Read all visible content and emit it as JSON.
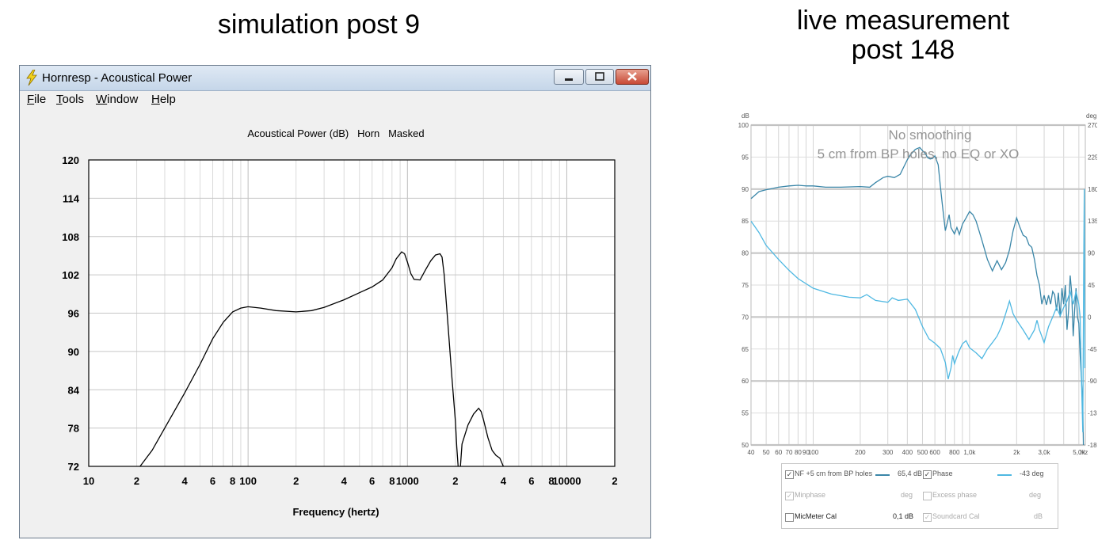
{
  "captions": {
    "left": "simulation post 9",
    "right_line1": "live measurement",
    "right_line2": "post 148"
  },
  "window": {
    "title": "Hornresp - Acoustical Power",
    "menu": [
      {
        "u": "F",
        "rest": "ile"
      },
      {
        "u": "T",
        "rest": "ools"
      },
      {
        "u": "W",
        "rest": "indow"
      },
      {
        "u": "H",
        "rest": "elp"
      }
    ]
  },
  "colors": {
    "phase": "#4fb8e2",
    "magnitude": "#3a86a8",
    "grid": "#c8c8c8",
    "close_button": "#c74a36"
  },
  "chart_data": [
    {
      "type": "line",
      "title": "Acoustical Power (dB)   Horn   Masked",
      "xlabel": "Frequency (hertz)",
      "ylabel": "",
      "xscale": "log",
      "xlim": [
        10,
        20000
      ],
      "ylim": [
        72,
        120
      ],
      "yticks": [
        72,
        78,
        84,
        90,
        96,
        102,
        108,
        114,
        120
      ],
      "xticklabels": [
        {
          "f": 10,
          "t": "10"
        },
        {
          "f": 20,
          "t": "2"
        },
        {
          "f": 40,
          "t": "4"
        },
        {
          "f": 60,
          "t": "6"
        },
        {
          "f": 80,
          "t": "8"
        },
        {
          "f": 100,
          "t": "100"
        },
        {
          "f": 200,
          "t": "2"
        },
        {
          "f": 400,
          "t": "4"
        },
        {
          "f": 600,
          "t": "6"
        },
        {
          "f": 800,
          "t": "8"
        },
        {
          "f": 1000,
          "t": "1000"
        },
        {
          "f": 2000,
          "t": "2"
        },
        {
          "f": 4000,
          "t": "4"
        },
        {
          "f": 6000,
          "t": "6"
        },
        {
          "f": 8000,
          "t": "8"
        },
        {
          "f": 10000,
          "t": "10000"
        },
        {
          "f": 20000,
          "t": "2"
        }
      ],
      "grid": true,
      "series": [
        {
          "segments": [
            [
              [
                21,
                72
              ],
              [
                25,
                74.5
              ],
              [
                30,
                78
              ],
              [
                40,
                83.5
              ],
              [
                50,
                88
              ],
              [
                60,
                92
              ],
              [
                70,
                94.6
              ],
              [
                80,
                96.2
              ],
              [
                90,
                96.8
              ],
              [
                100,
                97
              ],
              [
                120,
                96.8
              ],
              [
                150,
                96.4
              ],
              [
                200,
                96.2
              ],
              [
                250,
                96.4
              ],
              [
                300,
                96.9
              ],
              [
                400,
                98.1
              ],
              [
                500,
                99.2
              ],
              [
                600,
                100.1
              ],
              [
                700,
                101.2
              ],
              [
                800,
                103.1
              ],
              [
                850,
                104.5
              ],
              [
                920,
                105.6
              ],
              [
                960,
                105.3
              ],
              [
                1000,
                104
              ],
              [
                1050,
                102.2
              ],
              [
                1100,
                101.3
              ],
              [
                1200,
                101.2
              ],
              [
                1300,
                102.8
              ],
              [
                1400,
                104.2
              ],
              [
                1500,
                105.1
              ],
              [
                1600,
                105.3
              ],
              [
                1650,
                104.8
              ],
              [
                1700,
                102
              ],
              [
                1800,
                94
              ],
              [
                1900,
                86
              ],
              [
                2000,
                79
              ],
              [
                2040,
                75
              ],
              [
                2080,
                72
              ]
            ],
            [
              [
                2150,
                72
              ],
              [
                2200,
                75.5
              ],
              [
                2400,
                78.5
              ],
              [
                2600,
                80.2
              ],
              [
                2800,
                81.1
              ],
              [
                2900,
                80.6
              ],
              [
                3000,
                79.3
              ],
              [
                3200,
                76.5
              ],
              [
                3400,
                74.5
              ],
              [
                3600,
                73.7
              ],
              [
                3800,
                73.3
              ],
              [
                4000,
                72
              ]
            ]
          ]
        }
      ]
    },
    {
      "type": "line",
      "title": "",
      "annotations": [
        "No smoothing",
        "5 cm from BP holes, no EQ or XO"
      ],
      "xscale": "log",
      "xlim": [
        40,
        5500
      ],
      "ylim": [
        50,
        100
      ],
      "y_left_label": "dB",
      "y_right_label": "deg",
      "y_right_lim": [
        -180,
        270
      ],
      "yticks": [
        50,
        55,
        60,
        65,
        70,
        75,
        80,
        85,
        90,
        95,
        100
      ],
      "y_right_ticks": [
        -180,
        -135,
        -90,
        -45,
        0,
        45,
        90,
        135,
        180,
        225,
        270
      ],
      "xticklabels": [
        {
          "f": 40,
          "t": "40"
        },
        {
          "f": 50,
          "t": "50"
        },
        {
          "f": 60,
          "t": "60"
        },
        {
          "f": 70,
          "t": "70"
        },
        {
          "f": 80,
          "t": "80"
        },
        {
          "f": 90,
          "t": "90"
        },
        {
          "f": 100,
          "t": "100"
        },
        {
          "f": 200,
          "t": "200"
        },
        {
          "f": 300,
          "t": "300"
        },
        {
          "f": 400,
          "t": "400"
        },
        {
          "f": 500,
          "t": "500"
        },
        {
          "f": 600,
          "t": "600"
        },
        {
          "f": 800,
          "t": "800"
        },
        {
          "f": 1000,
          "t": "1,0k"
        },
        {
          "f": 2000,
          "t": "2k"
        },
        {
          "f": 3000,
          "t": "3,0k"
        },
        {
          "f": 5000,
          "t": "5,0k"
        },
        {
          "f": 5400,
          "t": "Hz"
        }
      ],
      "grid": true,
      "series": [
        {
          "name": "NF +5 cm from BP holes",
          "points": [
            [
              40,
              88.5
            ],
            [
              45,
              89.6
            ],
            [
              50,
              89.9
            ],
            [
              55,
              90.1
            ],
            [
              60,
              90.3
            ],
            [
              70,
              90.5
            ],
            [
              80,
              90.6
            ],
            [
              90,
              90.5
            ],
            [
              100,
              90.5
            ],
            [
              120,
              90.3
            ],
            [
              150,
              90.3
            ],
            [
              200,
              90.4
            ],
            [
              230,
              90.3
            ],
            [
              250,
              91
            ],
            [
              280,
              91.8
            ],
            [
              300,
              92
            ],
            [
              330,
              91.8
            ],
            [
              360,
              92.3
            ],
            [
              380,
              93.5
            ],
            [
              400,
              94.6
            ],
            [
              420,
              95.4
            ],
            [
              450,
              96.2
            ],
            [
              480,
              96.5
            ],
            [
              500,
              96
            ],
            [
              520,
              95.6
            ],
            [
              540,
              94.9
            ],
            [
              560,
              94.7
            ],
            [
              580,
              94.8
            ],
            [
              600,
              95.2
            ],
            [
              630,
              93.8
            ],
            [
              650,
              90.5
            ],
            [
              670,
              87.5
            ],
            [
              700,
              83.5
            ],
            [
              720,
              84.7
            ],
            [
              740,
              86
            ],
            [
              760,
              84
            ],
            [
              800,
              83
            ],
            [
              830,
              84
            ],
            [
              860,
              82.9
            ],
            [
              900,
              84.5
            ],
            [
              950,
              85.5
            ],
            [
              1000,
              86.5
            ],
            [
              1050,
              86
            ],
            [
              1100,
              85
            ],
            [
              1200,
              82
            ],
            [
              1300,
              79
            ],
            [
              1400,
              77.2
            ],
            [
              1500,
              78.8
            ],
            [
              1600,
              77.4
            ],
            [
              1700,
              78.5
            ],
            [
              1800,
              80.5
            ],
            [
              1900,
              83.5
            ],
            [
              2000,
              85.5
            ],
            [
              2100,
              84
            ],
            [
              2200,
              82.8
            ],
            [
              2300,
              82.5
            ],
            [
              2400,
              81.3
            ],
            [
              2500,
              80.9
            ],
            [
              2600,
              79
            ],
            [
              2700,
              76.5
            ],
            [
              2800,
              75
            ],
            [
              2900,
              72
            ],
            [
              3000,
              73.4
            ],
            [
              3100,
              71.9
            ],
            [
              3200,
              73.4
            ],
            [
              3300,
              72
            ],
            [
              3400,
              74
            ],
            [
              3500,
              73.5
            ],
            [
              3600,
              71
            ],
            [
              3700,
              73.8
            ],
            [
              3800,
              70
            ],
            [
              3900,
              74.5
            ],
            [
              4000,
              72
            ],
            [
              4100,
              75
            ],
            [
              4200,
              68
            ],
            [
              4300,
              71
            ],
            [
              4400,
              76.5
            ],
            [
              4500,
              73.8
            ],
            [
              4600,
              67
            ],
            [
              4700,
              71
            ],
            [
              4800,
              74.5
            ],
            [
              4900,
              70
            ],
            [
              5000,
              69
            ],
            [
              5100,
              64
            ],
            [
              5200,
              60
            ],
            [
              5300,
              56
            ],
            [
              5350,
              50
            ]
          ],
          "legend_value": "65,4 dB",
          "checked": true
        },
        {
          "name": "Phase",
          "points": [
            [
              40,
              85
            ],
            [
              45,
              83.2
            ],
            [
              50,
              81.2
            ],
            [
              60,
              79
            ],
            [
              70,
              77.3
            ],
            [
              80,
              76
            ],
            [
              100,
              74.5
            ],
            [
              130,
              73.6
            ],
            [
              170,
              73.1
            ],
            [
              200,
              73
            ],
            [
              220,
              73.5
            ],
            [
              250,
              72.6
            ],
            [
              300,
              72.3
            ],
            [
              320,
              73
            ],
            [
              350,
              72.6
            ],
            [
              400,
              72.8
            ],
            [
              450,
              71.2
            ],
            [
              500,
              68.5
            ],
            [
              550,
              66.6
            ],
            [
              600,
              65.9
            ],
            [
              650,
              65.1
            ],
            [
              700,
              62.9
            ],
            [
              730,
              60.3
            ],
            [
              760,
              62
            ],
            [
              780,
              64
            ],
            [
              800,
              62.7
            ],
            [
              850,
              64.5
            ],
            [
              900,
              65.8
            ],
            [
              950,
              66.3
            ],
            [
              1000,
              65.2
            ],
            [
              1100,
              64.4
            ],
            [
              1200,
              63.5
            ],
            [
              1300,
              65
            ],
            [
              1400,
              66
            ],
            [
              1500,
              67
            ],
            [
              1600,
              68.5
            ],
            [
              1700,
              70.5
            ],
            [
              1800,
              72.5
            ],
            [
              1900,
              70.5
            ],
            [
              2000,
              69.5
            ],
            [
              2200,
              68
            ],
            [
              2400,
              66.5
            ],
            [
              2600,
              68
            ],
            [
              2700,
              69.5
            ],
            [
              2800,
              68
            ],
            [
              3000,
              66
            ],
            [
              3200,
              68.5
            ],
            [
              3400,
              70
            ],
            [
              3600,
              71.5
            ],
            [
              3800,
              70.2
            ],
            [
              4000,
              71.5
            ],
            [
              4200,
              72.5
            ],
            [
              4400,
              74
            ],
            [
              4600,
              72
            ],
            [
              4800,
              74
            ],
            [
              5000,
              72
            ],
            [
              5100,
              70
            ],
            [
              5200,
              60
            ],
            [
              5300,
              52
            ],
            [
              5380,
              80
            ],
            [
              5420,
              90
            ],
            [
              5440,
              75
            ],
            [
              5460,
              62
            ]
          ],
          "legend_value": "-43 deg",
          "checked": true
        }
      ],
      "legend": [
        {
          "label": "NF +5 cm from BP holes",
          "value": "65,4 dB",
          "checked": true,
          "enabled": true
        },
        {
          "label": "Phase",
          "value": "-43 deg",
          "checked": true,
          "enabled": true
        },
        {
          "label": "Minphase",
          "value": "deg",
          "checked": true,
          "enabled": false
        },
        {
          "label": "Excess phase",
          "value": "deg",
          "checked": false,
          "enabled": false
        },
        {
          "label": "MicMeter Cal",
          "value": "0,1 dB",
          "checked": false,
          "enabled": true
        },
        {
          "label": "Soundcard Cal",
          "value": "dB",
          "checked": true,
          "enabled": false
        }
      ]
    }
  ]
}
